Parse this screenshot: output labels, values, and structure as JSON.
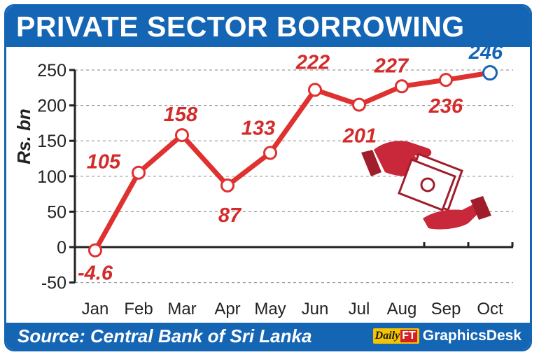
{
  "header": {
    "title": "PRIVATE SECTOR BORROWING"
  },
  "footer": {
    "source": "Source: Central Bank of Sri Lanka",
    "brand_daily": "Daily",
    "brand_ft": "FT",
    "brand_desk": "GraphicsDesk"
  },
  "colors": {
    "brand_blue": "#1565b5",
    "line_red": "#e03131",
    "label_red": "#d42a2a",
    "highlight_blue": "#1565b5"
  },
  "icon": "hands-passing-money-icon",
  "chart_data": {
    "type": "line",
    "title": "PRIVATE SECTOR BORROWING",
    "ylabel": "Rs. bn",
    "xlabel": "",
    "categories": [
      "Jan",
      "Feb",
      "Mar",
      "Apr",
      "May",
      "Jun",
      "Jul",
      "Aug",
      "Sep",
      "Oct"
    ],
    "values": [
      -4.6,
      105,
      158,
      87,
      133,
      222,
      201,
      227,
      236,
      246
    ],
    "value_labels": [
      "-4.6",
      "105",
      "158",
      "87",
      "133",
      "222",
      "201",
      "227",
      "236",
      "246"
    ],
    "yticks": [
      "250",
      "200",
      "150",
      "100",
      "50",
      "0",
      "-50"
    ],
    "ylim": [
      -50,
      250
    ],
    "grid": true,
    "highlight_last": true
  }
}
